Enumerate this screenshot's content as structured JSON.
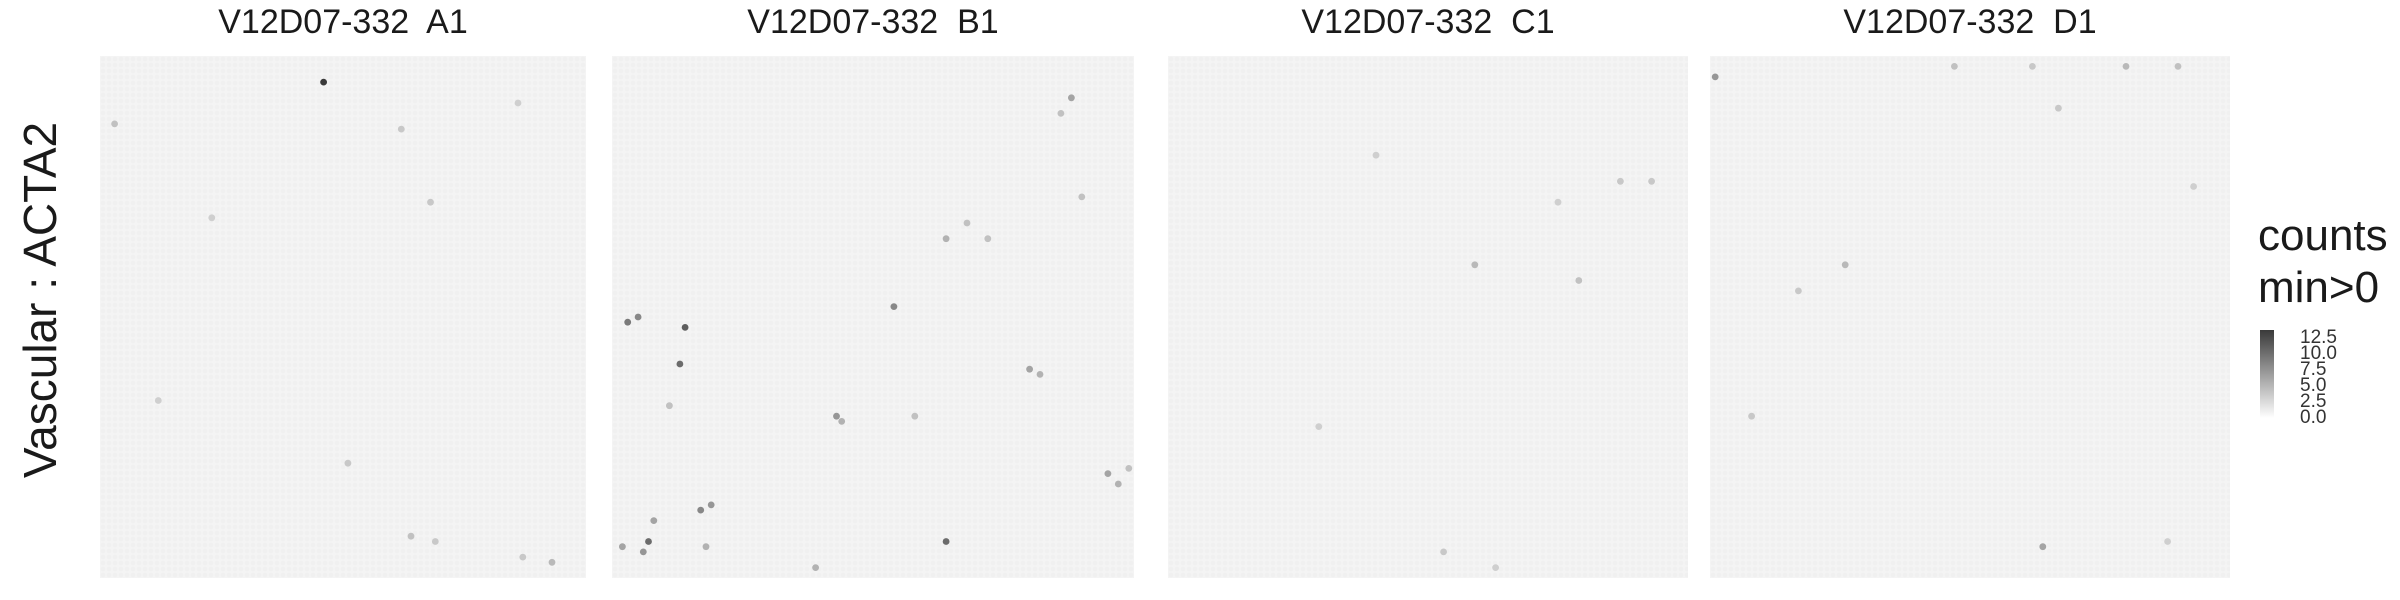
{
  "figure": {
    "row_label": "Vascular : ACTA2",
    "legend": {
      "title_line1": "counts",
      "title_line2": "min>0",
      "ticks": [
        "12.5",
        "10.0",
        "7.5",
        "5.0",
        "2.5",
        "0.0"
      ],
      "color_low": "#ffffff",
      "color_high": "#3a3a3a"
    }
  },
  "chart_data": {
    "type": "heatmap",
    "description_kind": "spatial spot heatmap (4 facets)",
    "value_range": [
      0,
      12.5
    ],
    "background_spot_color": "#f0f0f0",
    "panels": [
      {
        "title": "V12D07-332  A1",
        "hot_spots": [
          {
            "x": 0.46,
            "y": 0.05,
            "value": 12.5
          },
          {
            "x": 0.03,
            "y": 0.13,
            "value": 3.0
          },
          {
            "x": 0.62,
            "y": 0.14,
            "value": 2.5
          },
          {
            "x": 0.23,
            "y": 0.31,
            "value": 2.0
          },
          {
            "x": 0.68,
            "y": 0.28,
            "value": 2.5
          },
          {
            "x": 0.86,
            "y": 0.09,
            "value": 2.0
          },
          {
            "x": 0.12,
            "y": 0.66,
            "value": 2.0
          },
          {
            "x": 0.51,
            "y": 0.78,
            "value": 2.5
          },
          {
            "x": 0.64,
            "y": 0.92,
            "value": 3.0
          },
          {
            "x": 0.69,
            "y": 0.93,
            "value": 2.5
          },
          {
            "x": 0.87,
            "y": 0.96,
            "value": 2.5
          },
          {
            "x": 0.93,
            "y": 0.97,
            "value": 3.5
          }
        ]
      },
      {
        "title": "V12D07-332  B1",
        "hot_spots": [
          {
            "x": 0.88,
            "y": 0.08,
            "value": 5.0
          },
          {
            "x": 0.86,
            "y": 0.11,
            "value": 3.0
          },
          {
            "x": 0.9,
            "y": 0.27,
            "value": 3.0
          },
          {
            "x": 0.68,
            "y": 0.32,
            "value": 3.0
          },
          {
            "x": 0.64,
            "y": 0.35,
            "value": 4.0
          },
          {
            "x": 0.72,
            "y": 0.35,
            "value": 3.0
          },
          {
            "x": 0.03,
            "y": 0.51,
            "value": 8.0
          },
          {
            "x": 0.05,
            "y": 0.5,
            "value": 7.0
          },
          {
            "x": 0.14,
            "y": 0.52,
            "value": 10.0
          },
          {
            "x": 0.13,
            "y": 0.59,
            "value": 9.0
          },
          {
            "x": 0.54,
            "y": 0.48,
            "value": 7.0
          },
          {
            "x": 0.8,
            "y": 0.6,
            "value": 5.0
          },
          {
            "x": 0.82,
            "y": 0.61,
            "value": 4.0
          },
          {
            "x": 0.43,
            "y": 0.69,
            "value": 6.0
          },
          {
            "x": 0.44,
            "y": 0.7,
            "value": 4.0
          },
          {
            "x": 0.11,
            "y": 0.67,
            "value": 3.0
          },
          {
            "x": 0.58,
            "y": 0.69,
            "value": 3.0
          },
          {
            "x": 0.95,
            "y": 0.8,
            "value": 5.0
          },
          {
            "x": 0.97,
            "y": 0.82,
            "value": 4.0
          },
          {
            "x": 0.99,
            "y": 0.79,
            "value": 3.0
          },
          {
            "x": 0.17,
            "y": 0.87,
            "value": 7.0
          },
          {
            "x": 0.19,
            "y": 0.86,
            "value": 6.0
          },
          {
            "x": 0.07,
            "y": 0.93,
            "value": 9.0
          },
          {
            "x": 0.02,
            "y": 0.94,
            "value": 5.0
          },
          {
            "x": 0.06,
            "y": 0.95,
            "value": 6.0
          },
          {
            "x": 0.18,
            "y": 0.94,
            "value": 4.0
          },
          {
            "x": 0.64,
            "y": 0.93,
            "value": 9.0
          },
          {
            "x": 0.39,
            "y": 0.98,
            "value": 4.0
          },
          {
            "x": 0.08,
            "y": 0.89,
            "value": 5.0
          }
        ]
      },
      {
        "title": "V12D07-332  C1",
        "hot_spots": [
          {
            "x": 0.59,
            "y": 0.4,
            "value": 3.5
          },
          {
            "x": 0.79,
            "y": 0.43,
            "value": 3.0
          },
          {
            "x": 0.87,
            "y": 0.24,
            "value": 2.5
          },
          {
            "x": 0.93,
            "y": 0.24,
            "value": 2.5
          },
          {
            "x": 0.4,
            "y": 0.19,
            "value": 2.0
          },
          {
            "x": 0.75,
            "y": 0.28,
            "value": 2.0
          },
          {
            "x": 0.29,
            "y": 0.71,
            "value": 2.0
          },
          {
            "x": 0.53,
            "y": 0.95,
            "value": 2.5
          },
          {
            "x": 0.63,
            "y": 0.98,
            "value": 2.0
          }
        ]
      },
      {
        "title": "V12D07-332  D1",
        "hot_spots": [
          {
            "x": 0.01,
            "y": 0.04,
            "value": 6.0
          },
          {
            "x": 0.47,
            "y": 0.02,
            "value": 3.0
          },
          {
            "x": 0.62,
            "y": 0.02,
            "value": 2.5
          },
          {
            "x": 0.8,
            "y": 0.02,
            "value": 3.5
          },
          {
            "x": 0.9,
            "y": 0.02,
            "value": 3.0
          },
          {
            "x": 0.67,
            "y": 0.1,
            "value": 2.5
          },
          {
            "x": 0.26,
            "y": 0.4,
            "value": 3.5
          },
          {
            "x": 0.17,
            "y": 0.45,
            "value": 2.5
          },
          {
            "x": 0.08,
            "y": 0.69,
            "value": 2.5
          },
          {
            "x": 0.64,
            "y": 0.94,
            "value": 5.0
          },
          {
            "x": 0.88,
            "y": 0.93,
            "value": 2.0
          },
          {
            "x": 0.93,
            "y": 0.25,
            "value": 2.0
          }
        ]
      }
    ]
  }
}
